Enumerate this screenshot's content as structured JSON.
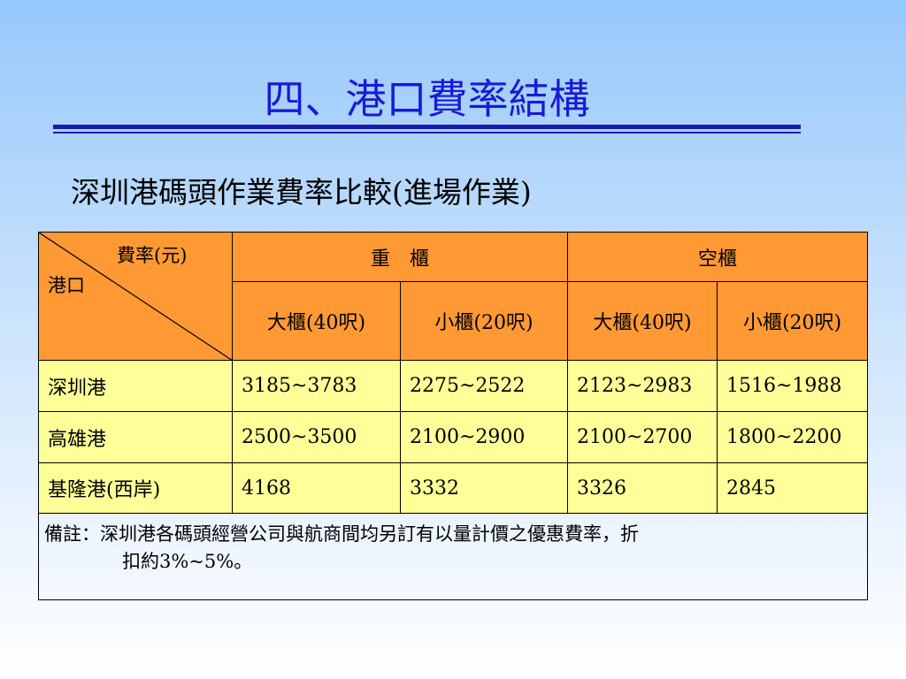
{
  "slide": {
    "title": "四、港口費率結構",
    "subtitle": "深圳港碼頭作業費率比較(進場作業)"
  },
  "table": {
    "corner_top": "費率(元)",
    "corner_bottom": "港口",
    "group_headers": [
      "重　櫃",
      "空櫃"
    ],
    "sub_headers": [
      "大櫃(40呎)",
      "小櫃(20呎)",
      "大櫃(40呎)",
      "小櫃(20呎)"
    ],
    "rows": [
      {
        "port": "深圳港",
        "values": [
          "3185~3783",
          "2275~2522",
          "2123~2983",
          "1516~1988"
        ]
      },
      {
        "port": "高雄港",
        "values": [
          "2500~3500",
          "2100~2900",
          "2100~2700",
          "1800~2200"
        ]
      },
      {
        "port": "基隆港(西岸)",
        "values": [
          "4168",
          "3332",
          "3326",
          "2845"
        ]
      }
    ],
    "note_line1": "備註：深圳港各碼頭經營公司與航商間均另訂有以量計價之優惠費率，折",
    "note_line2": "扣約3%~5%。"
  },
  "colors": {
    "title": "#1a1ad6",
    "header_fill": "#ff9933",
    "cell_fill": "#ffff99",
    "rule": "#1a1ab0"
  }
}
